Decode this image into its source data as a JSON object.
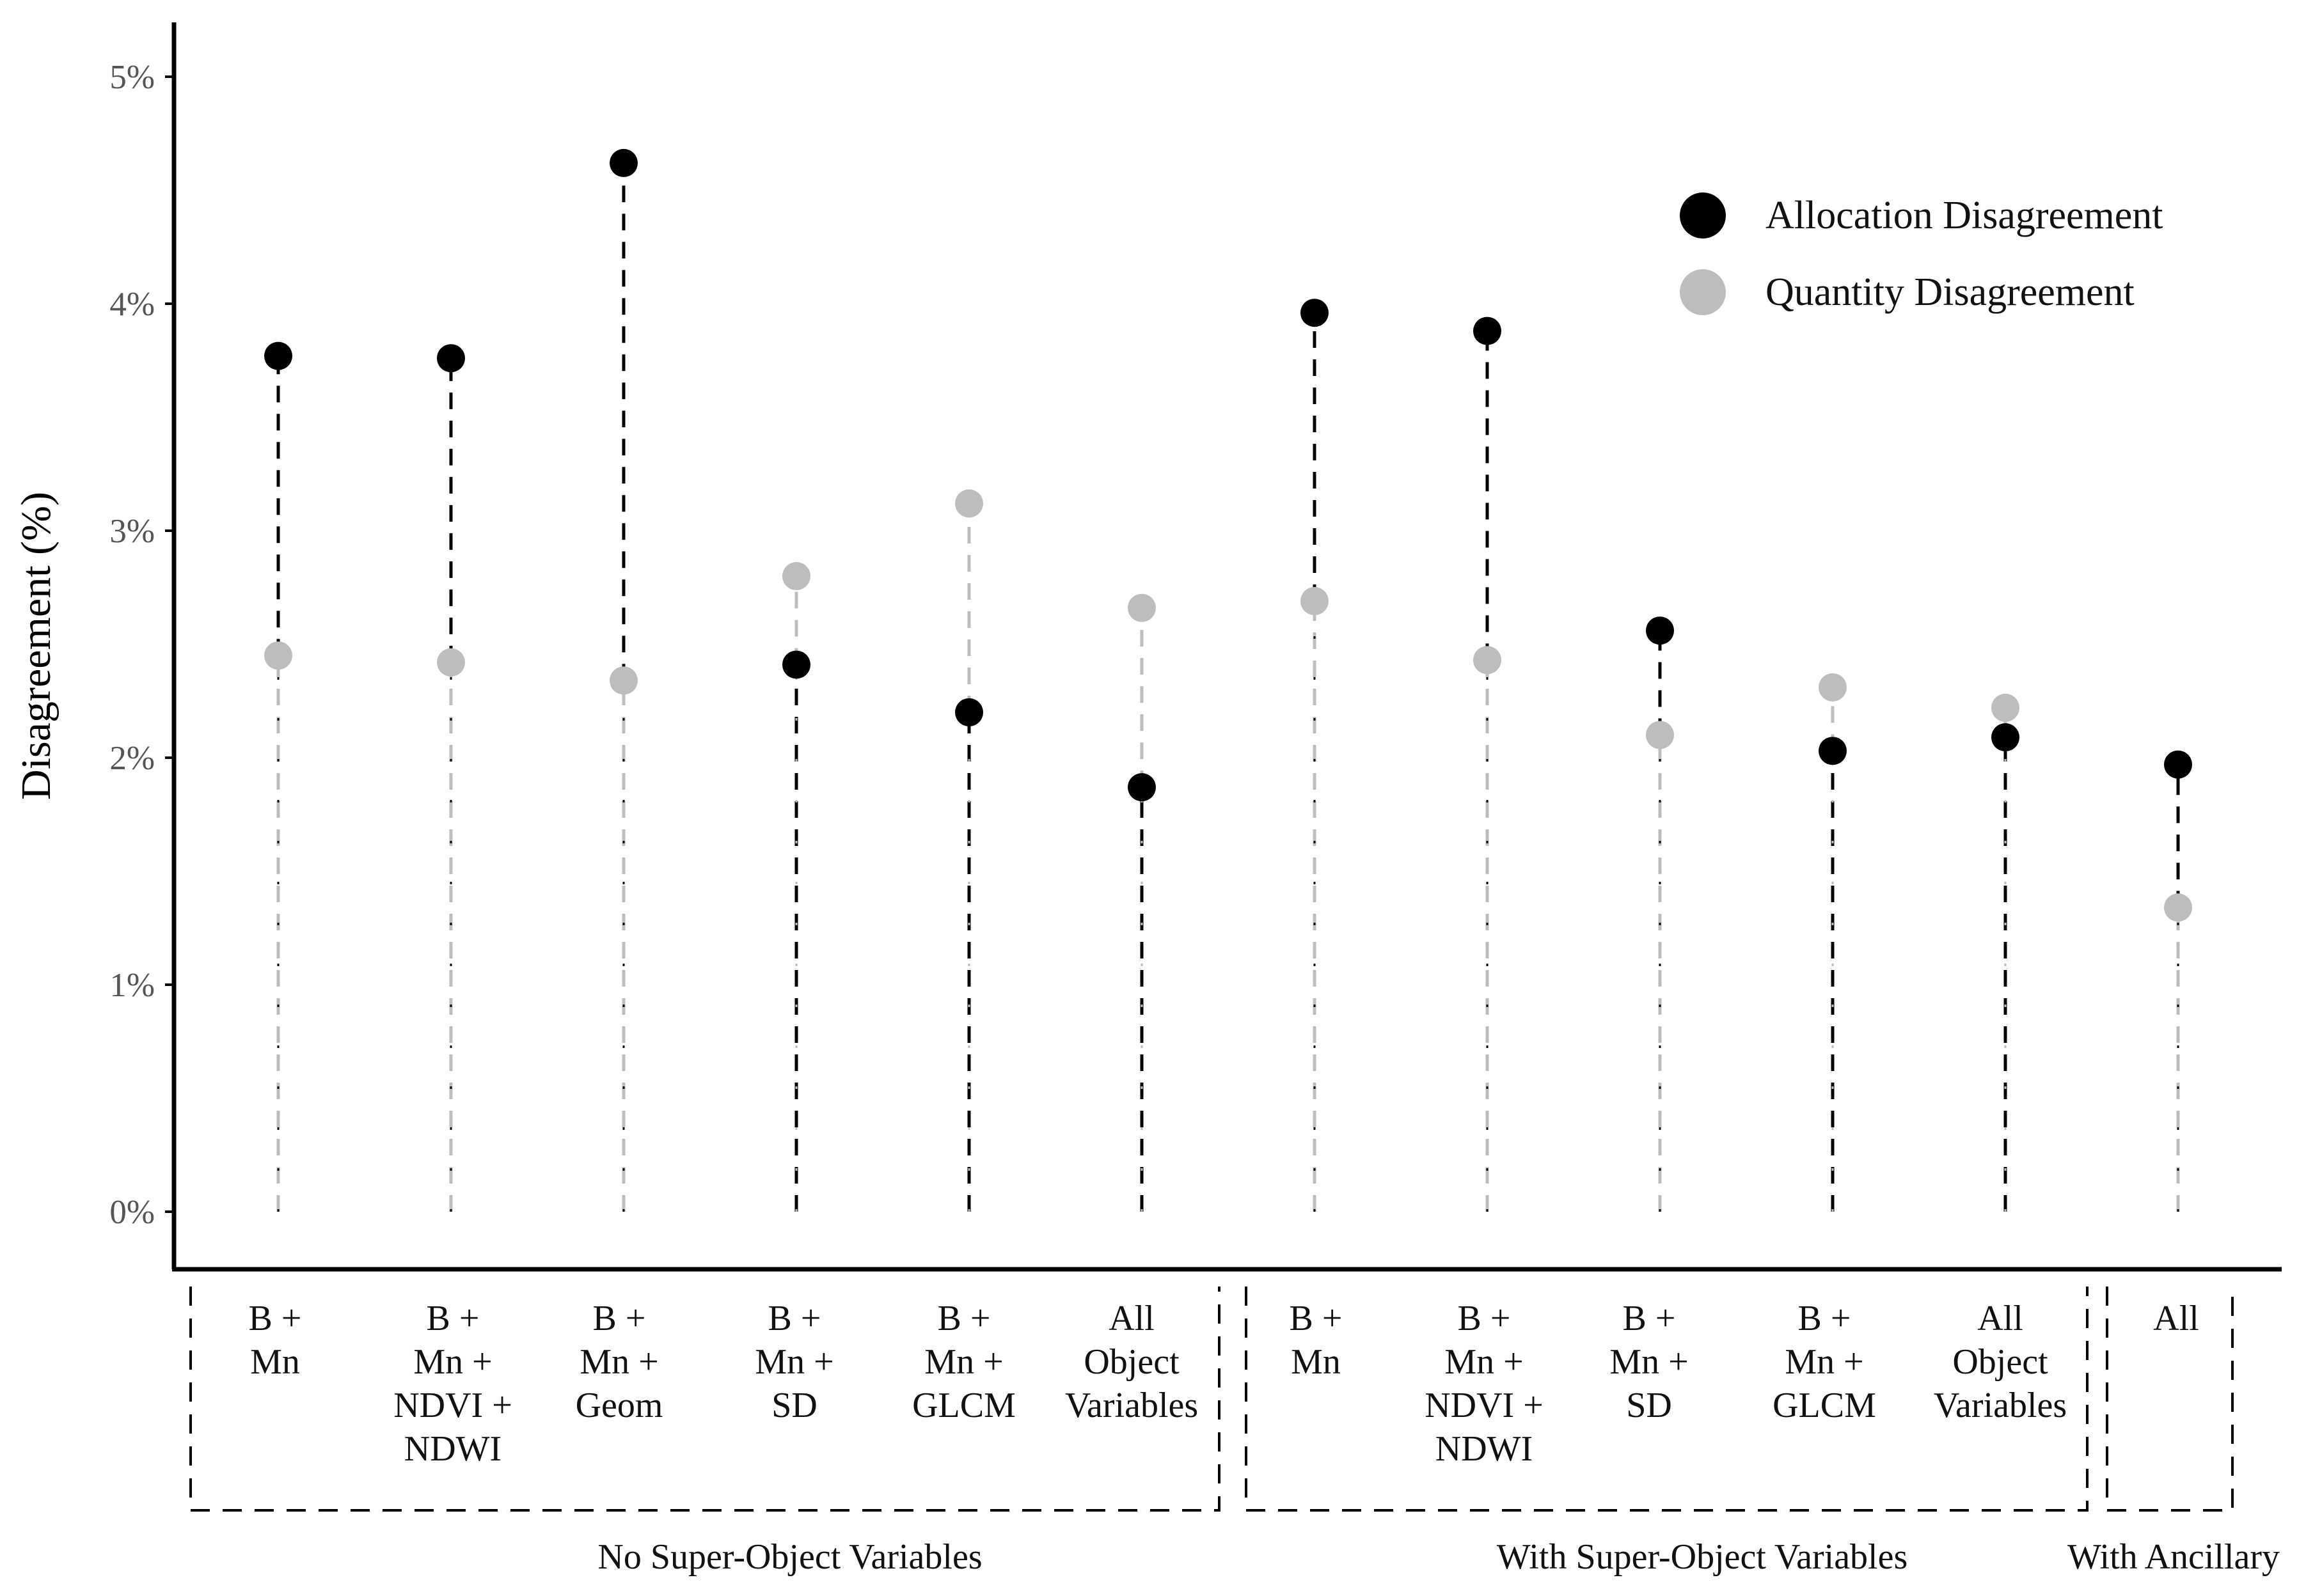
{
  "chart_data": {
    "type": "lollipop",
    "ylabel": "Disagreement (%)",
    "ylim": [
      0,
      5
    ],
    "yticks": [
      0,
      1,
      2,
      3,
      4,
      5
    ],
    "ytick_labels": [
      "0%",
      "1%",
      "2%",
      "3%",
      "4%",
      "5%"
    ],
    "legend_position": "top-right",
    "categories": [
      [
        "B +",
        "Mn"
      ],
      [
        "B +",
        "Mn +",
        "NDVI +",
        "NDWI"
      ],
      [
        "B +",
        "Mn +",
        "Geom"
      ],
      [
        "B +",
        "Mn +",
        "SD"
      ],
      [
        "B +",
        "Mn +",
        "GLCM"
      ],
      [
        "All",
        "Object",
        "Variables"
      ],
      [
        "B +",
        "Mn"
      ],
      [
        "B +",
        "Mn +",
        "NDVI +",
        "NDWI"
      ],
      [
        "B +",
        "Mn +",
        "SD"
      ],
      [
        "B +",
        "Mn +",
        "GLCM"
      ],
      [
        "All",
        "Object",
        "Variables"
      ],
      [
        "All"
      ]
    ],
    "groups": [
      {
        "label": "No Super-Object Variables",
        "start": 0,
        "end": 5
      },
      {
        "label": "With Super-Object Variables",
        "start": 6,
        "end": 10
      },
      {
        "label": "With Ancillary",
        "start": 11,
        "end": 11
      }
    ],
    "series": [
      {
        "name": "Allocation Disagreement",
        "color": "#000000",
        "values": [
          3.77,
          3.76,
          4.62,
          2.41,
          2.2,
          1.87,
          3.96,
          3.88,
          2.56,
          2.03,
          2.09,
          1.97
        ]
      },
      {
        "name": "Quantity Disagreement",
        "color": "#bdbdbd",
        "values": [
          2.45,
          2.42,
          2.34,
          2.8,
          3.12,
          2.66,
          2.69,
          2.43,
          2.1,
          2.31,
          2.22,
          1.34
        ]
      }
    ]
  }
}
